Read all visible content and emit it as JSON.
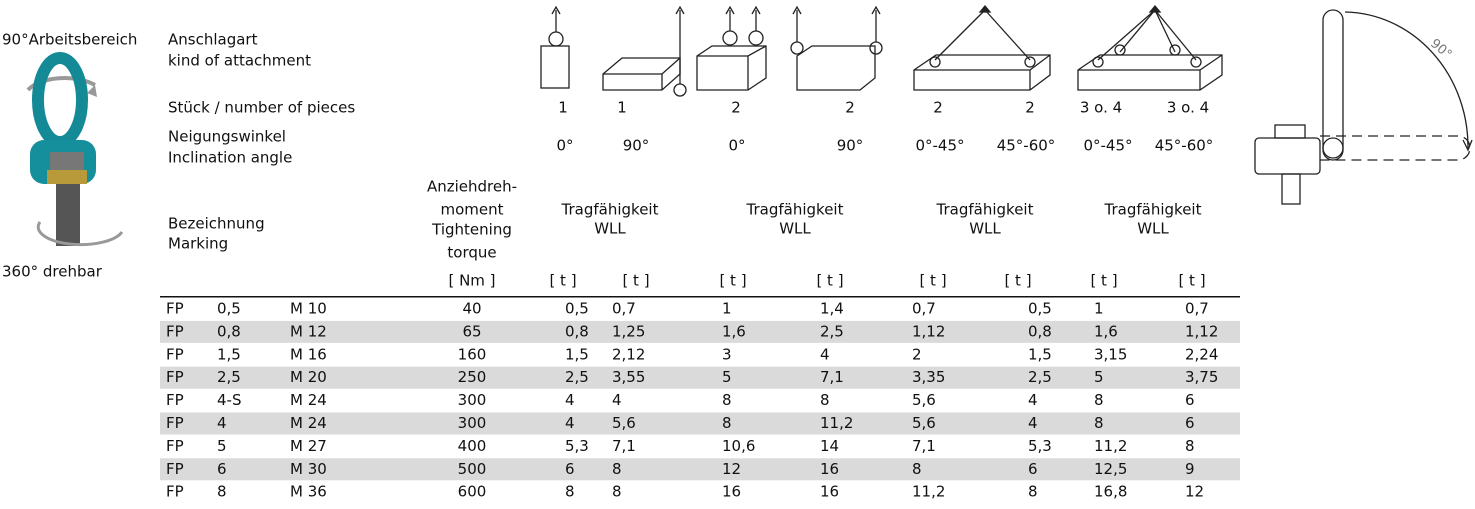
{
  "side": {
    "working_range": "90°Arbeitsbereich",
    "rotation": "360° drehbar",
    "drawing_angle": "90°"
  },
  "header": {
    "attachment": [
      "Anschlagart",
      "kind of attachment"
    ],
    "pieces_label": "Stück / number of pieces",
    "pieces": [
      "1",
      "1",
      "2",
      "2",
      "2",
      "2",
      "3 o. 4",
      "3 o. 4"
    ],
    "angle_label": [
      "Neigungswinkel",
      "Inclination angle"
    ],
    "angles": [
      "0°",
      "90°",
      "0°",
      "90°",
      "0°-45°",
      "45°-60°",
      "0°-45°",
      "45°-60°"
    ],
    "marking_label": [
      "Bezeichnung",
      "Marking"
    ],
    "torque_label": [
      "Anziehdreh-",
      "moment",
      "Tightening",
      "torque"
    ],
    "capacity_groups": [
      [
        "Tragfähigkeit",
        "WLL"
      ],
      [
        "Tragfähigkeit",
        "WLL"
      ],
      [
        "Tragfähigkeit",
        "WLL"
      ],
      [
        "Tragfähigkeit",
        "WLL"
      ]
    ],
    "units": [
      "[ Nm ]",
      "[ t ]",
      "[ t ]",
      "[ t ]",
      "[ t ]",
      "[ t ]",
      "[ t ]",
      "[ t ]",
      "[ t ]"
    ]
  },
  "table": {
    "rows": [
      [
        "FP",
        "0,5",
        "M 10",
        "40",
        "0,5",
        "0,7",
        "1",
        "1,4",
        "0,7",
        "0,5",
        "1",
        "0,7"
      ],
      [
        "FP",
        "0,8",
        "M 12",
        "65",
        "0,8",
        "1,25",
        "1,6",
        "2,5",
        "1,12",
        "0,8",
        "1,6",
        "1,12"
      ],
      [
        "FP",
        "1,5",
        "M 16",
        "160",
        "1,5",
        "2,12",
        "3",
        "4",
        "2",
        "1,5",
        "3,15",
        "2,24"
      ],
      [
        "FP",
        "2,5",
        "M 20",
        "250",
        "2,5",
        "3,55",
        "5",
        "7,1",
        "3,35",
        "2,5",
        "5",
        "3,75"
      ],
      [
        "FP",
        "4-S",
        "M 24",
        "300",
        "4",
        "4",
        "8",
        "8",
        "5,6",
        "4",
        "8",
        "6"
      ],
      [
        "FP",
        "4",
        "M 24",
        "300",
        "4",
        "5,6",
        "8",
        "11,2",
        "5,6",
        "4",
        "8",
        "6"
      ],
      [
        "FP",
        "5",
        "M 27",
        "400",
        "5,3",
        "7,1",
        "10,6",
        "14",
        "7,1",
        "5,3",
        "11,2",
        "8"
      ],
      [
        "FP",
        "6",
        "M 30",
        "500",
        "6",
        "8",
        "12",
        "16",
        "8",
        "6",
        "12,5",
        "9"
      ],
      [
        "FP",
        "8",
        "M 36",
        "600",
        "8",
        "8",
        "16",
        "16",
        "11,2",
        "8",
        "16,8",
        "12"
      ]
    ]
  }
}
